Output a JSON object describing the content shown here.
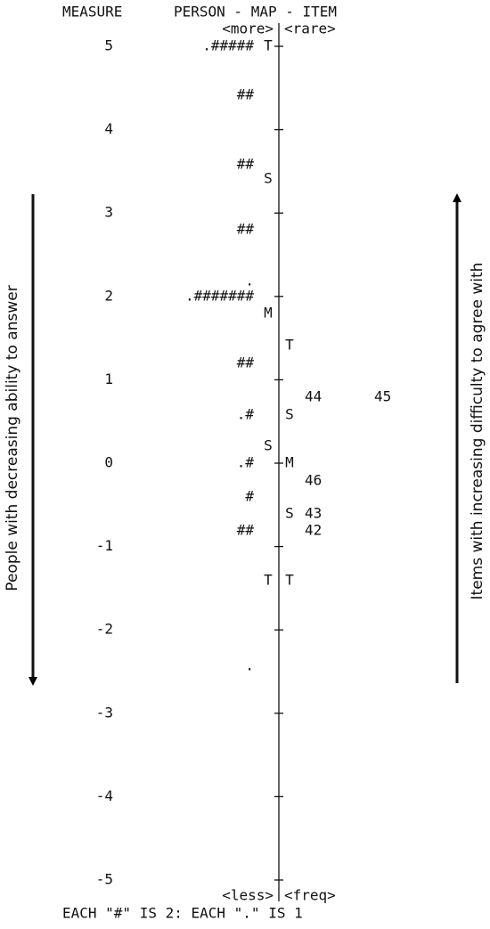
{
  "header": {
    "measure": "MEASURE",
    "title": "PERSON - MAP - ITEM",
    "top_left": "<more>",
    "top_right": "<rare>",
    "bottom_left": "<less>",
    "bottom_right": "<freq>",
    "footnote": "EACH \"#\" IS 2: EACH \".\" IS 1"
  },
  "measure_labels": [
    "5",
    "4",
    "3",
    "2",
    "1",
    "0",
    "-1",
    "-2",
    "-3",
    "-4",
    "-5"
  ],
  "persons": [
    ".#####",
    "##",
    "##",
    "##",
    ".",
    ".#######",
    "##",
    ".#",
    ".#",
    "#",
    "##",
    "."
  ],
  "person_markers": [
    "T",
    "S",
    "M",
    "S",
    "T"
  ],
  "item_markers": [
    "T",
    "S",
    "M",
    "S",
    "T"
  ],
  "items": [
    "44",
    "45",
    "46",
    "43",
    "42"
  ],
  "annotations": {
    "left": "People with decreasing ability to answer",
    "right": "Items with increasing difficulty to agree with"
  }
}
